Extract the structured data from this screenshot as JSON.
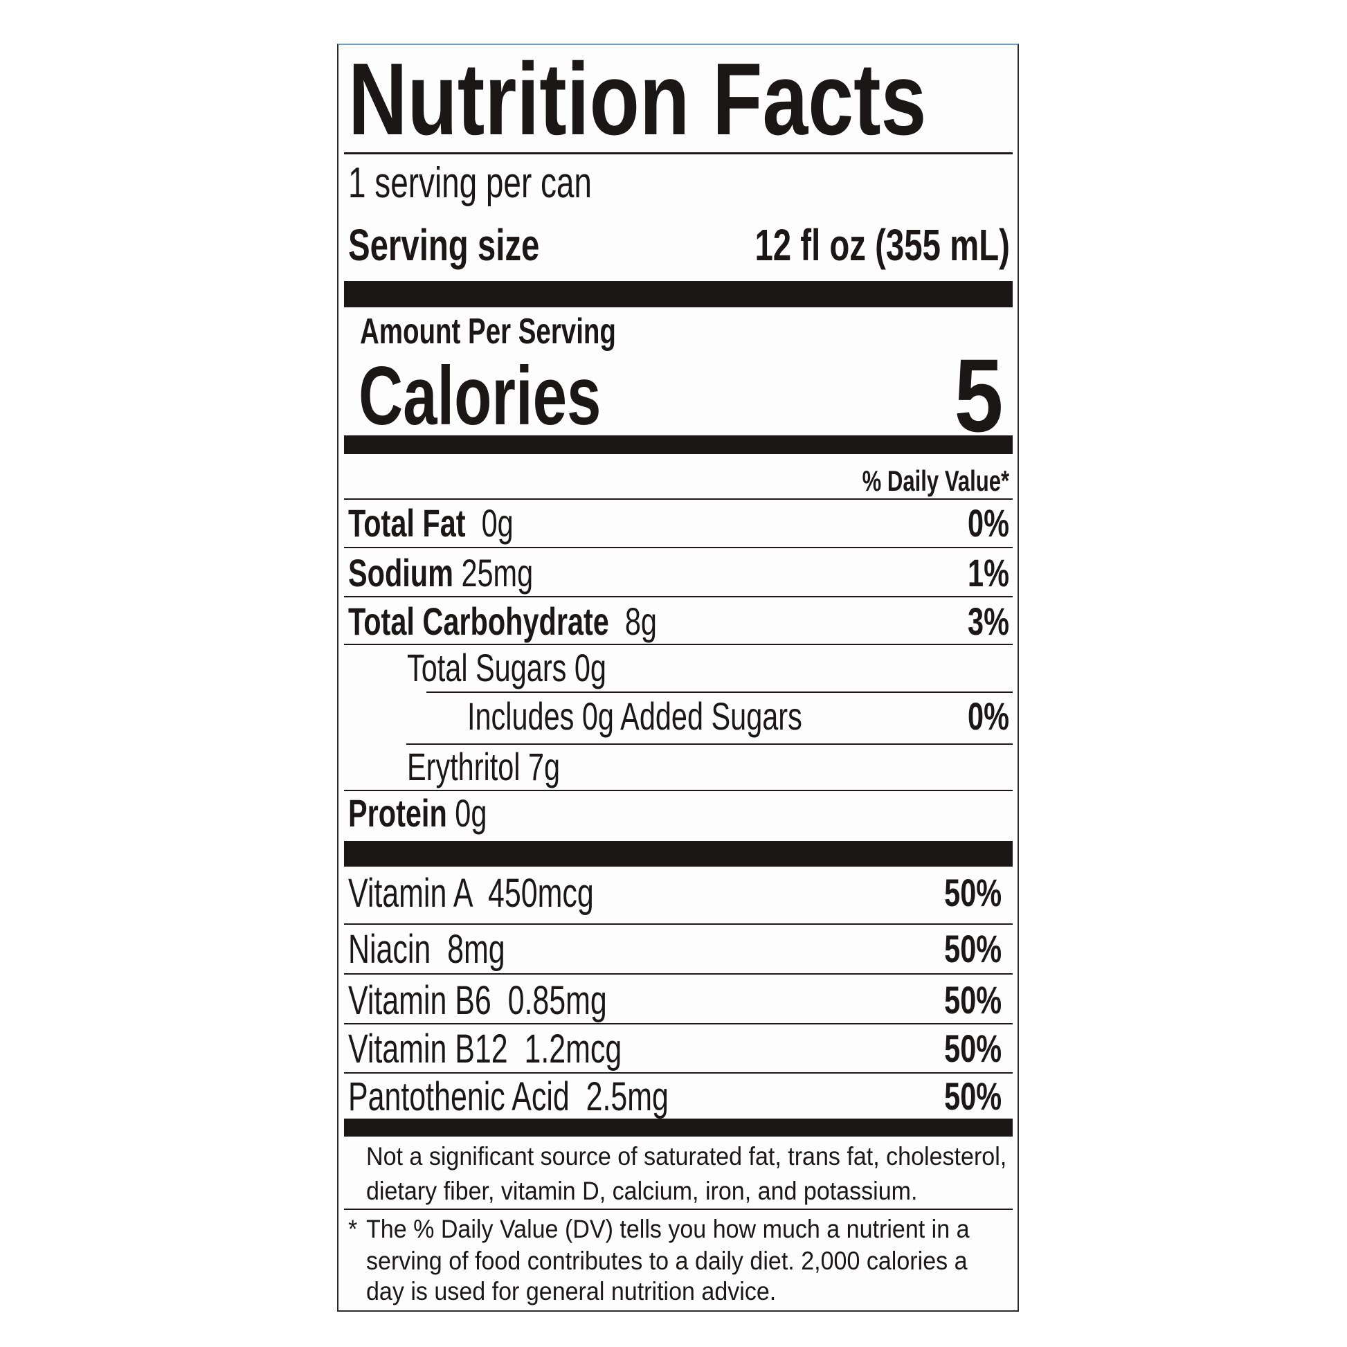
{
  "title": "Nutrition Facts",
  "servings_per_container": "1 serving per can",
  "serving_size": {
    "label": "Serving size",
    "value": "12 fl oz (355 mL)"
  },
  "amount_per_serving": "Amount Per Serving",
  "calories": {
    "label": "Calories",
    "value": "5"
  },
  "daily_value_header": "% Daily Value*",
  "nutrients": [
    {
      "label": "Total Fat",
      "amount": "0g",
      "dv": "0%"
    },
    {
      "label": "Sodium",
      "amount": "25mg",
      "dv": "1%"
    },
    {
      "label": "Total Carbohydrate",
      "amount": "8g",
      "dv": "3%"
    },
    {
      "label": "Total Sugars 0g"
    },
    {
      "label": "Includes 0g Added Sugars",
      "dv": "0%"
    },
    {
      "label": "Erythritol 7g"
    },
    {
      "label": "Protein",
      "amount": "0g"
    }
  ],
  "vitamins": [
    {
      "label": "Vitamin A  450mcg",
      "dv": "50%"
    },
    {
      "label": "Niacin  8mg",
      "dv": "50%"
    },
    {
      "label": "Vitamin B6  0.85mg",
      "dv": "50%"
    },
    {
      "label": "Vitamin B12  1.2mcg",
      "dv": "50%"
    },
    {
      "label": "Pantothenic Acid  2.5mg",
      "dv": "50%"
    }
  ],
  "not_significant": [
    "Not a significant source of saturated fat, trans fat, cholesterol,",
    "dietary fiber, vitamin D, calcium, iron, and potassium."
  ],
  "footnote": {
    "star": "*",
    "lines": [
      "The % Daily Value (DV) tells you how much a nutrient in a",
      "serving of food contributes to a daily diet. 2,000 calories a",
      "day is used for general nutrition advice."
    ]
  }
}
